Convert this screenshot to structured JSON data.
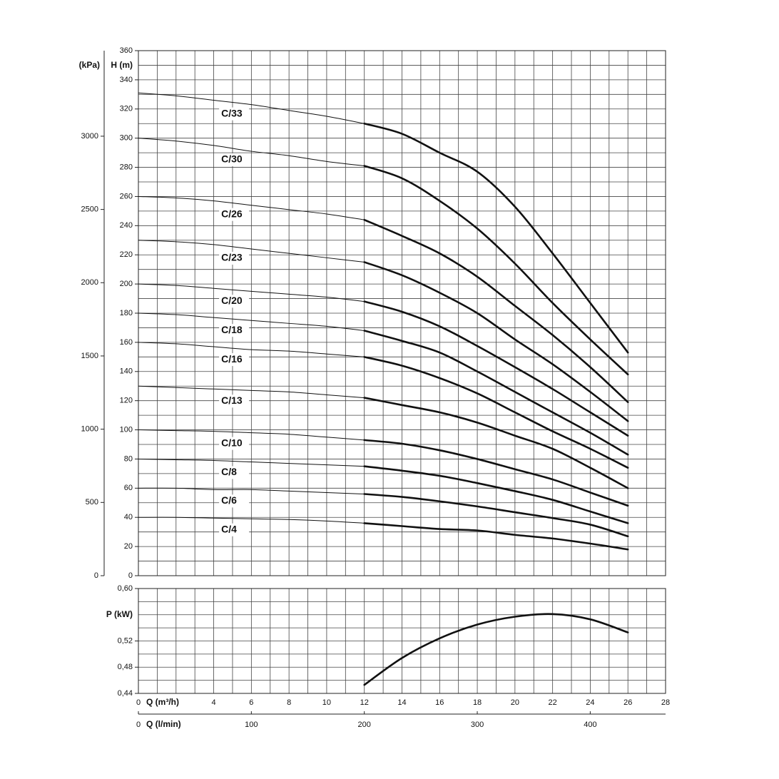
{
  "chart_data": [
    {
      "type": "line",
      "ylabel": "H (m)",
      "y2label": "(kPa)",
      "x": [
        0,
        2,
        4,
        6,
        8,
        10,
        12,
        14,
        16,
        18,
        20,
        22,
        24,
        26
      ],
      "xlim": [
        0,
        28
      ],
      "xgrid_step": 1,
      "ylim": [
        0,
        360
      ],
      "yticks": [
        0,
        20,
        40,
        60,
        80,
        100,
        120,
        140,
        160,
        180,
        200,
        220,
        240,
        260,
        280,
        300,
        320,
        340,
        360
      ],
      "ygrid_step": 10,
      "y2lim": [
        0,
        3584
      ],
      "y2ticks": [
        0,
        500,
        1000,
        1500,
        2000,
        2500,
        3000
      ],
      "color": "#111111",
      "series": [
        {
          "name": "C/33",
          "values": [
            331,
            329,
            326,
            323,
            319,
            315,
            310,
            303,
            290,
            277,
            253,
            221,
            187,
            153
          ]
        },
        {
          "name": "C/30",
          "values": [
            300,
            298,
            295,
            291,
            288,
            284,
            281,
            272.5,
            257,
            238,
            214,
            187,
            162,
            138
          ]
        },
        {
          "name": "C/26",
          "values": [
            260,
            259,
            257,
            254,
            251,
            248,
            244,
            233,
            221,
            205,
            185,
            165,
            143,
            119
          ]
        },
        {
          "name": "C/23",
          "values": [
            230,
            229,
            227,
            224,
            221,
            218,
            215,
            206,
            194,
            180,
            162,
            145,
            126,
            106
          ]
        },
        {
          "name": "C/20",
          "values": [
            200,
            199,
            197,
            195,
            193,
            191,
            188,
            181,
            171,
            157.5,
            143,
            128,
            112,
            96
          ]
        },
        {
          "name": "C/18",
          "values": [
            180,
            179,
            177,
            175,
            173,
            171,
            168,
            161,
            153,
            140,
            126,
            112,
            98,
            83
          ]
        },
        {
          "name": "C/16",
          "values": [
            160,
            159,
            157,
            155,
            154,
            152,
            150,
            144,
            135.5,
            125,
            112,
            99,
            87,
            74
          ]
        },
        {
          "name": "C/13",
          "values": [
            130,
            129,
            128,
            127,
            126,
            124,
            122,
            117,
            112,
            105,
            96,
            87,
            74,
            60
          ]
        },
        {
          "name": "C/10",
          "values": [
            100,
            99.5,
            99,
            98,
            97,
            95,
            93,
            90.5,
            86,
            80,
            73,
            66,
            57,
            48
          ]
        },
        {
          "name": "C/8",
          "values": [
            80,
            79.5,
            79,
            78,
            77,
            76,
            75,
            72,
            68.5,
            63.5,
            58,
            52,
            44,
            36
          ]
        },
        {
          "name": "C/6",
          "values": [
            60,
            60,
            59,
            59,
            58,
            57,
            56,
            54,
            51,
            47.5,
            43.5,
            39.5,
            35,
            27
          ]
        },
        {
          "name": "C/4",
          "values": [
            40,
            40,
            39.5,
            39,
            38.5,
            37.5,
            36,
            34,
            32,
            31,
            28,
            25.5,
            22,
            18
          ]
        }
      ]
    },
    {
      "type": "line",
      "ylabel": "P (kW)",
      "xlabel": "Q (m³/h)",
      "x2label": "Q (l/min)",
      "x": [
        12,
        14,
        16,
        18,
        20,
        22,
        24,
        26
      ],
      "values": [
        0.453,
        0.494,
        0.524,
        0.545,
        0.557,
        0.561,
        0.553,
        0.533
      ],
      "color": "#111111",
      "xlim": [
        0,
        28
      ],
      "xticks": [
        0,
        4,
        6,
        8,
        10,
        12,
        14,
        16,
        18,
        20,
        22,
        24,
        26,
        28
      ],
      "xgrid_step": 1,
      "x2lim": [
        0,
        466.7
      ],
      "x2ticks": [
        0,
        100,
        200,
        300,
        400
      ],
      "ylim": [
        0.44,
        0.6
      ],
      "ygrid_step": 0.02,
      "yticks": [
        {
          "value": 0.44,
          "label": "0,44"
        },
        {
          "value": 0.48,
          "label": "0,48"
        },
        {
          "value": 0.52,
          "label": "0,52"
        },
        {
          "value": 0.6,
          "label": "0,60"
        }
      ]
    }
  ]
}
